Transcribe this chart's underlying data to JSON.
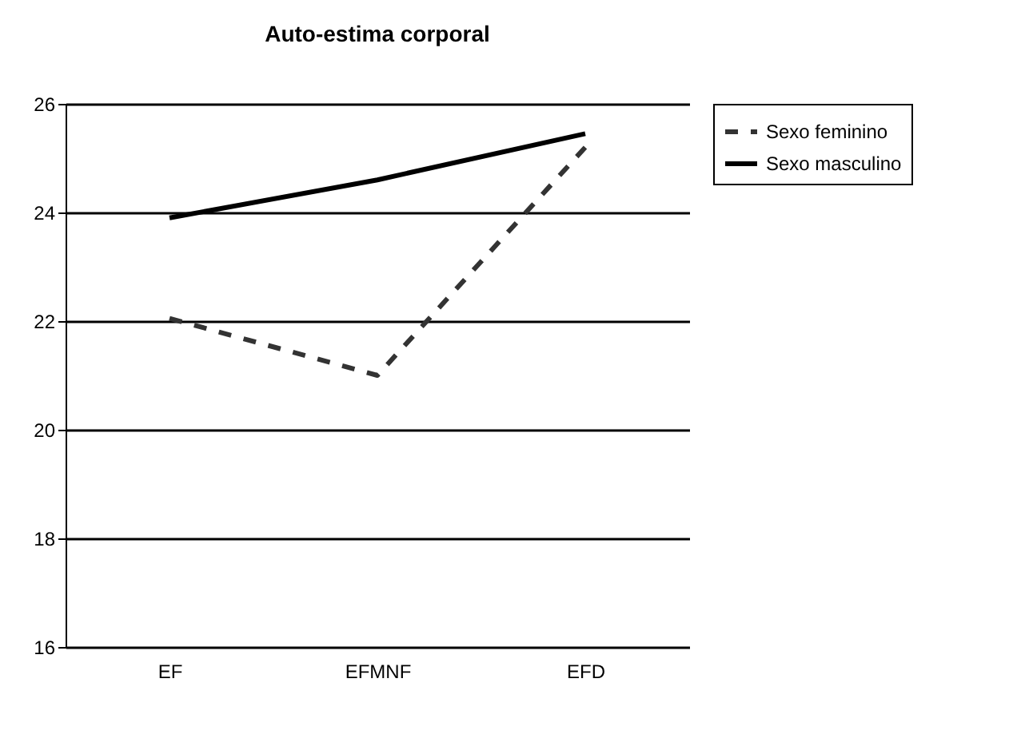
{
  "chart_data": {
    "type": "line",
    "title": "Auto-estima corporal",
    "categories": [
      "EF",
      "EFMNF",
      "EFD"
    ],
    "series": [
      {
        "name": "Sexo feminino",
        "color": "#333333",
        "line_style": "dashed",
        "values": [
          22.05,
          21.0,
          25.2
        ]
      },
      {
        "name": "Sexo masculino",
        "color": "#000000",
        "line_style": "solid",
        "values": [
          23.9,
          24.6,
          25.45
        ]
      }
    ],
    "ylim": [
      16,
      26
    ],
    "yticks": [
      16,
      18,
      20,
      22,
      24,
      26
    ],
    "grid": "y",
    "legend": "right",
    "marker": "none"
  }
}
